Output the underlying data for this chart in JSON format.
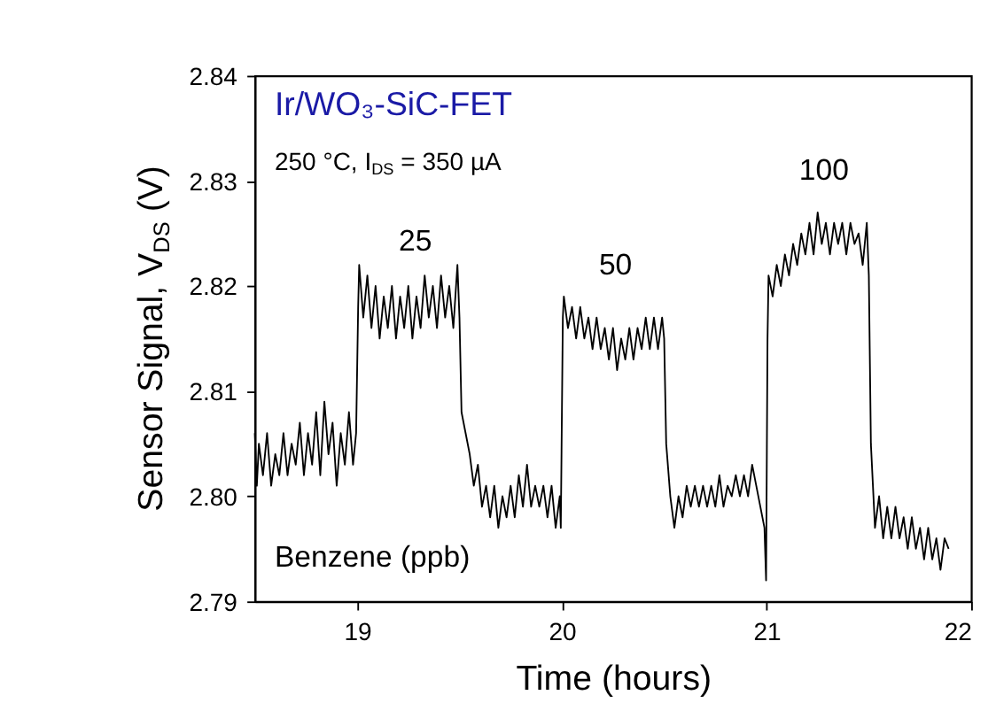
{
  "chart_data": {
    "type": "line",
    "xlabel": "Time (hours)",
    "ylabel": "Sensor Signal, V$_{DS}$ (V)",
    "xlim": [
      18.5,
      22
    ],
    "xticks": [
      19,
      20,
      21,
      22
    ],
    "ylim": [
      2.79,
      2.84
    ],
    "yticks": [
      2.79,
      {
        "value": 2.8,
        "label": "2.80"
      },
      2.81,
      2.82,
      2.83,
      2.84
    ],
    "grid": false,
    "annotations": [
      "Ir/WO₃-SiC-FET",
      "250 °C, I$_{DS}$ = 350 µA",
      "Benzene (ppb)",
      "25",
      "50",
      "100"
    ],
    "x": [
      18.5,
      18.51,
      18.52,
      18.54,
      18.56,
      18.58,
      18.6,
      18.62,
      18.64,
      18.66,
      18.68,
      18.7,
      18.72,
      18.74,
      18.76,
      18.78,
      18.8,
      18.82,
      18.84,
      18.86,
      18.88,
      18.9,
      18.92,
      18.94,
      18.96,
      18.98,
      18.995,
      19.005,
      19.01,
      19.03,
      19.05,
      19.07,
      19.09,
      19.11,
      19.13,
      19.15,
      19.17,
      19.19,
      19.21,
      19.23,
      19.25,
      19.27,
      19.29,
      19.31,
      19.33,
      19.35,
      19.37,
      19.39,
      19.41,
      19.43,
      19.45,
      19.47,
      19.49,
      19.5,
      19.51,
      19.53,
      19.55,
      19.57,
      19.59,
      19.61,
      19.63,
      19.65,
      19.67,
      19.69,
      19.71,
      19.73,
      19.75,
      19.77,
      19.79,
      19.81,
      19.83,
      19.85,
      19.87,
      19.89,
      19.91,
      19.93,
      19.95,
      19.97,
      19.99,
      19.995,
      20.005,
      20.01,
      20.03,
      20.05,
      20.07,
      20.09,
      20.11,
      20.13,
      20.15,
      20.17,
      20.19,
      20.21,
      20.23,
      20.25,
      20.27,
      20.29,
      20.31,
      20.33,
      20.35,
      20.37,
      20.39,
      20.41,
      20.43,
      20.45,
      20.47,
      20.49,
      20.5,
      20.51,
      20.53,
      20.55,
      20.57,
      20.59,
      20.61,
      20.63,
      20.65,
      20.67,
      20.69,
      20.71,
      20.73,
      20.75,
      20.77,
      20.79,
      20.81,
      20.83,
      20.85,
      20.87,
      20.89,
      20.91,
      20.93,
      20.95,
      20.97,
      20.99,
      20.998,
      21.005,
      21.01,
      21.03,
      21.05,
      21.07,
      21.09,
      21.11,
      21.13,
      21.15,
      21.17,
      21.19,
      21.21,
      21.23,
      21.25,
      21.27,
      21.29,
      21.31,
      21.33,
      21.35,
      21.37,
      21.39,
      21.41,
      21.43,
      21.45,
      21.47,
      21.49,
      21.5,
      21.51,
      21.53,
      21.55,
      21.57,
      21.59,
      21.61,
      21.63,
      21.65,
      21.67,
      21.69,
      21.71,
      21.73,
      21.75,
      21.77,
      21.79,
      21.81,
      21.83,
      21.85,
      21.87,
      21.89
    ],
    "series": [
      {
        "color": "#000000",
        "values": [
          2.806,
          2.801,
          2.805,
          2.802,
          2.806,
          2.801,
          2.804,
          2.802,
          2.806,
          2.802,
          2.805,
          2.803,
          2.807,
          2.802,
          2.806,
          2.803,
          2.808,
          2.802,
          2.809,
          2.804,
          2.807,
          2.801,
          2.806,
          2.803,
          2.808,
          2.803,
          2.806,
          2.818,
          2.822,
          2.817,
          2.821,
          2.816,
          2.82,
          2.815,
          2.819,
          2.816,
          2.82,
          2.815,
          2.819,
          2.816,
          2.82,
          2.815,
          2.819,
          2.816,
          2.821,
          2.817,
          2.82,
          2.816,
          2.821,
          2.817,
          2.82,
          2.816,
          2.822,
          2.817,
          2.808,
          2.806,
          2.804,
          2.801,
          2.803,
          2.799,
          2.801,
          2.798,
          2.801,
          2.797,
          2.8,
          2.798,
          2.801,
          2.798,
          2.802,
          2.799,
          2.803,
          2.799,
          2.801,
          2.799,
          2.801,
          2.798,
          2.801,
          2.797,
          2.8,
          2.797,
          2.817,
          2.819,
          2.816,
          2.818,
          2.815,
          2.818,
          2.815,
          2.817,
          2.814,
          2.817,
          2.814,
          2.816,
          2.813,
          2.816,
          2.812,
          2.815,
          2.813,
          2.816,
          2.813,
          2.816,
          2.814,
          2.817,
          2.814,
          2.817,
          2.814,
          2.817,
          2.815,
          2.805,
          2.8,
          2.797,
          2.8,
          2.798,
          2.801,
          2.799,
          2.801,
          2.799,
          2.801,
          2.799,
          2.801,
          2.799,
          2.802,
          2.799,
          2.801,
          2.8,
          2.802,
          2.8,
          2.802,
          2.8,
          2.803,
          2.801,
          2.799,
          2.797,
          2.792,
          2.815,
          2.821,
          2.819,
          2.822,
          2.82,
          2.823,
          2.821,
          2.824,
          2.822,
          2.825,
          2.823,
          2.826,
          2.823,
          2.827,
          2.824,
          2.826,
          2.823,
          2.826,
          2.824,
          2.826,
          2.823,
          2.826,
          2.824,
          2.825,
          2.822,
          2.826,
          2.821,
          2.805,
          2.797,
          2.8,
          2.796,
          2.799,
          2.796,
          2.799,
          2.796,
          2.798,
          2.795,
          2.798,
          2.795,
          2.797,
          2.794,
          2.797,
          2.794,
          2.796,
          2.793,
          2.796,
          2.795
        ]
      }
    ]
  }
}
